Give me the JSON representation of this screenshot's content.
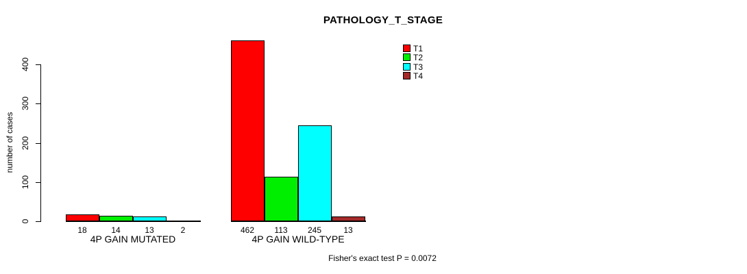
{
  "chart_data": {
    "type": "bar",
    "title": "PATHOLOGY_T_STAGE",
    "xlabel": "",
    "ylabel": "number of cases",
    "yticks": [
      0,
      100,
      200,
      300,
      400
    ],
    "ylim": [
      0,
      462
    ],
    "grid": false,
    "legend_position": "top-right",
    "categories": [
      "4P GAIN MUTATED",
      "4P GAIN WILD-TYPE"
    ],
    "series": [
      {
        "name": "T1",
        "color": "#FF0000",
        "values": [
          18,
          462
        ]
      },
      {
        "name": "T2",
        "color": "#00EE00",
        "values": [
          14,
          113
        ]
      },
      {
        "name": "T3",
        "color": "#00FFFF",
        "values": [
          13,
          245
        ]
      },
      {
        "name": "T4",
        "color": "#A52A2A",
        "values": [
          2,
          13
        ]
      }
    ],
    "annotation": "Fisher's exact test P = 0.0072"
  }
}
